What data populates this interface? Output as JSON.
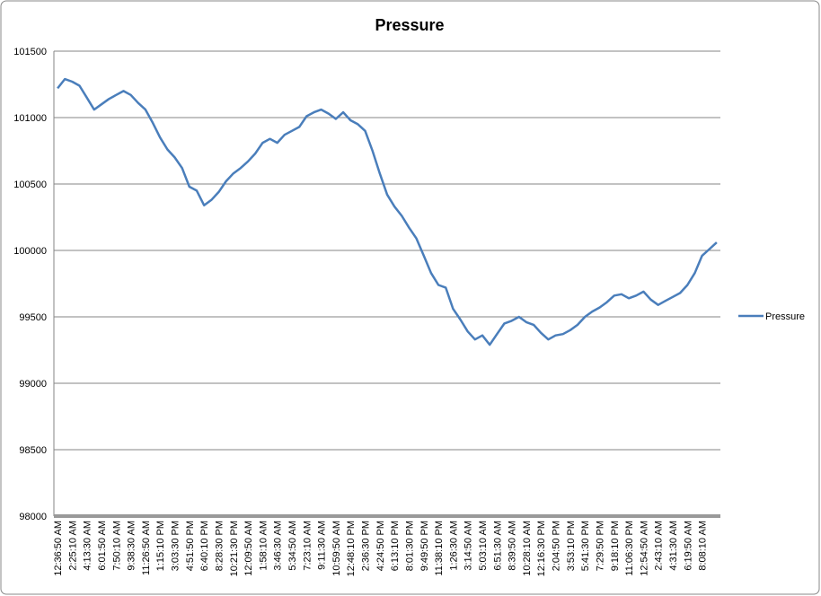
{
  "chart_data": {
    "type": "line",
    "title": "Pressure",
    "categories": [
      "12:36:50 AM",
      null,
      "2:25:10 AM",
      null,
      "4:13:30 AM",
      null,
      "6:01:50 AM",
      null,
      "7:50:10 AM",
      null,
      "9:38:30 AM",
      null,
      "11:26:50 AM",
      null,
      "1:15:10 PM",
      null,
      "3:03:30 PM",
      null,
      "4:51:50 PM",
      null,
      "6:40:10 PM",
      null,
      "8:28:30 PM",
      null,
      "10:21:30 PM",
      null,
      "12:09:50 AM",
      null,
      "1:58:10 AM",
      null,
      "3:46:30 AM",
      null,
      "5:34:50 AM",
      null,
      "7:23:10 AM",
      null,
      "9:11:30 AM",
      null,
      "10:59:50 AM",
      null,
      "12:48:10 PM",
      null,
      "2:36:30 PM",
      null,
      "4:24:50 PM",
      null,
      "6:13:10 PM",
      null,
      "8:01:30 PM",
      null,
      "9:49:50 PM",
      null,
      "11:38:10 PM",
      null,
      "1:26:30 AM",
      null,
      "3:14:50 AM",
      null,
      "5:03:10 AM",
      null,
      "6:51:30 AM",
      null,
      "8:39:50 AM",
      null,
      "10:28:10 AM",
      null,
      "12:16:30 PM",
      null,
      "2:04:50 PM",
      null,
      "3:53:10 PM",
      null,
      "5:41:30 PM",
      null,
      "7:29:50 PM",
      null,
      "9:18:10 PM",
      null,
      "11:06:30 PM",
      null,
      "12:54:50 AM",
      null,
      "2:43:10 AM",
      null,
      "4:31:30 AM",
      null,
      "6:19:50 AM",
      null,
      "8:08:10 AM",
      null,
      null
    ],
    "series": [
      {
        "name": "Pressure",
        "color": "#4a7ebb",
        "values": [
          101220,
          101290,
          101270,
          101240,
          101150,
          101060,
          101100,
          101140,
          101170,
          101200,
          101170,
          101110,
          101060,
          100960,
          100850,
          100760,
          100700,
          100620,
          100480,
          100450,
          100340,
          100380,
          100440,
          100520,
          100580,
          100620,
          100670,
          100730,
          100810,
          100840,
          100810,
          100870,
          100900,
          100930,
          101010,
          101040,
          101060,
          101030,
          100990,
          101040,
          100980,
          100950,
          100900,
          100750,
          100580,
          100420,
          100330,
          100260,
          100170,
          100090,
          99960,
          99830,
          99740,
          99720,
          99560,
          99480,
          99390,
          99330,
          99360,
          99290,
          99370,
          99450,
          99470,
          99500,
          99460,
          99440,
          99380,
          99330,
          99360,
          99370,
          99400,
          99440,
          99500,
          99540,
          99570,
          99610,
          99660,
          99670,
          99640,
          99660,
          99690,
          99630,
          99590,
          99620,
          99650,
          99680,
          99740,
          99830,
          99960,
          100010,
          100060
        ]
      }
    ],
    "ylim": [
      98000,
      101500
    ],
    "yticks": [
      98000,
      98500,
      99000,
      99500,
      100000,
      100500,
      101000,
      101500
    ],
    "grid": true,
    "legend": "right"
  }
}
